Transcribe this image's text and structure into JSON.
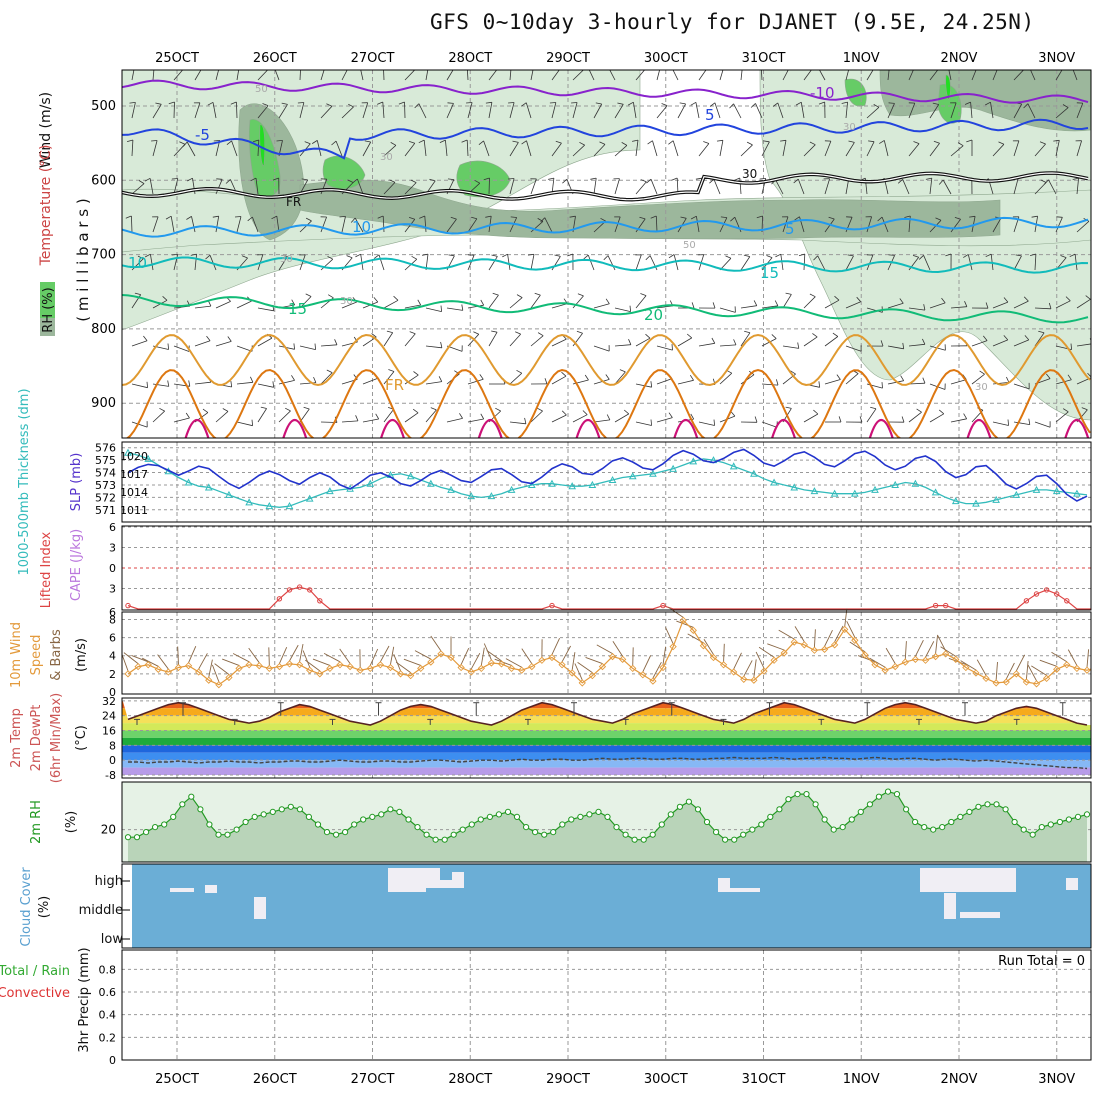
{
  "title": "GFS 0~10day 3-hourly for DJANET (9.5E, 24.25N)",
  "colors": {
    "frame": "#000000",
    "grid": "#999999",
    "rh_light": "#d8ead8",
    "rh_mid": "#9cb79c",
    "rh_green": "#66cc66",
    "rh_bright": "#22dd22",
    "temp_m10": "#8822cc",
    "temp_m5": "#2244dd",
    "temp_5": "#2299ee",
    "temp_10": "#11bbbb",
    "temp_15": "#11bb77",
    "temp_20": "#e09a30",
    "temp_25": "#dd7711",
    "temp_30": "#cc1177",
    "slp": "#2233cc",
    "thickness": "#33bbbb",
    "li": "#dd4444",
    "wind10m": "#e39a3c",
    "barb10m": "#886644",
    "rh2m": "#229922",
    "rh2m_fill": "#e6f2e6",
    "cloud_fill": "#6baed6",
    "cloud_clear": "#f0eef4",
    "precip_label_green": "#33aa33",
    "precip_label_red": "#dd3333"
  },
  "x_axis": {
    "top_labels": [
      "25OCT",
      "26OCT",
      "27OCT",
      "28OCT",
      "29OCT",
      "30OCT",
      "31OCT",
      "1NOV",
      "2NOV",
      "3NOV"
    ],
    "bottom_labels": [
      "25OCT",
      "26OCT",
      "27OCT",
      "28OCT",
      "29OCT",
      "30OCT",
      "31OCT",
      "1NOV",
      "2NOV",
      "3NOV"
    ]
  },
  "upper_panel": {
    "ylabel_wind": "Wind (m/s)",
    "ylabel_temp": "Temperature (°C)",
    "ylabel_rh": "RH (%)",
    "ylabel_mb": "( m i l l i b a r s )",
    "pressure_ticks": [
      "500",
      "600",
      "700",
      "800",
      "900"
    ],
    "contour_labels": [
      "-10",
      "-5",
      "5",
      "5",
      "10",
      "10",
      "15",
      "15",
      "20",
      "FR",
      "FR",
      "30",
      "50",
      "50",
      "30",
      "30",
      "30",
      "30",
      "30"
    ]
  },
  "slp_panel": {
    "ylabel_thick": "1000-500mb Thickness (dm)",
    "ylabel_slp": "SLP (mb)",
    "left_ticks": [
      "576",
      "575",
      "574",
      "573",
      "572",
      "571"
    ],
    "right_ticks": [
      "1020",
      "1017",
      "1014",
      "1011"
    ]
  },
  "li_panel": {
    "ylabel_li": "Lifted Index",
    "ylabel_cape": "CAPE (J/kg)",
    "ticks": [
      "6",
      "3",
      "0",
      "3",
      "6"
    ]
  },
  "wind_panel": {
    "ylabel_a": "10m Wind",
    "ylabel_b": "Speed",
    "ylabel_c": "& Barbs",
    "ylabel_unit": "(m/s)",
    "ticks": [
      "8",
      "6",
      "4",
      "2",
      "0"
    ]
  },
  "temp_panel": {
    "ylabel_a": "2m Temp",
    "ylabel_b": "2m DewPt",
    "ylabel_c": "(6hr Min/Max)",
    "ylabel_unit": "(°C)",
    "ticks": [
      "32",
      "24",
      "16",
      "8",
      "0",
      "-8"
    ]
  },
  "rh_panel": {
    "ylabel": "2m RH",
    "ylabel_unit": "(%)",
    "ticks": [
      "20"
    ]
  },
  "cloud_panel": {
    "ylabel": "Cloud Cover",
    "ylabel_unit": "(%)",
    "rows": [
      "high",
      "middle",
      "low"
    ]
  },
  "precip_panel": {
    "ylabel_a": "Total / Rain",
    "ylabel_b": "Convective",
    "ylabel_c": "3hr Precip (mm)",
    "ticks": [
      "0.8",
      "0.6",
      "0.4",
      "0.2",
      "0"
    ],
    "run_total": "Run Total = 0"
  },
  "chart_data": [
    {
      "type": "line",
      "name": "SLP",
      "x_start": "25OCT -15h",
      "x_step_hours": 3,
      "values": [
        1017.2,
        1018.1,
        1018.6,
        1018.4,
        1017.6,
        1016.8,
        1017.5,
        1018.3,
        1017.9,
        1016.6,
        1015.4,
        1014.6,
        1015.6,
        1016.8,
        1017.5,
        1016.9,
        1015.9,
        1015.3,
        1016.4,
        1017.2,
        1016.5,
        1015.2,
        1014.5,
        1015.6,
        1016.8,
        1017.2,
        1016.5,
        1015.4,
        1015.0,
        1015.9,
        1017.0,
        1017.6,
        1016.8,
        1015.9,
        1015.6,
        1016.6,
        1017.7,
        1017.9,
        1016.9,
        1015.7,
        1015.4,
        1016.5,
        1017.9,
        1018.7,
        1018.2,
        1017.1,
        1016.9,
        1017.9,
        1019.2,
        1019.7,
        1019.0,
        1018.0,
        1017.7,
        1018.7,
        1020.1,
        1020.9,
        1020.3,
        1019.2,
        1018.9,
        1019.6,
        1020.6,
        1021.1,
        1020.1,
        1018.8,
        1018.3,
        1019.2,
        1020.3,
        1020.7,
        1019.8,
        1018.6,
        1018.2,
        1019.2,
        1020.4,
        1020.8,
        1019.9,
        1018.5,
        1017.7,
        1018.3,
        1019.6,
        1020.0,
        1019.1,
        1017.4,
        1016.4,
        1016.9,
        1018.2,
        1018.4,
        1017.0,
        1015.3,
        1014.5,
        1015.4,
        1016.6,
        1016.8,
        1015.4,
        1013.6,
        1012.5,
        1013.3
      ]
    },
    {
      "type": "line",
      "name": "1000-500mb Thickness",
      "values": [
        575.6,
        575.4,
        575.1,
        574.6,
        574.1,
        573.6,
        573.2,
        572.9,
        572.8,
        572.5,
        572.2,
        571.9,
        571.6,
        571.4,
        571.3,
        571.2,
        571.3,
        571.6,
        571.9,
        572.2,
        572.5,
        572.6,
        572.7,
        572.8,
        573.1,
        573.5,
        573.8,
        573.9,
        573.7,
        573.4,
        573.1,
        572.8,
        572.6,
        572.3,
        572.1,
        572.0,
        572.1,
        572.3,
        572.6,
        572.8,
        573.0,
        573.1,
        573.1,
        573.0,
        572.9,
        572.9,
        573.0,
        573.2,
        573.4,
        573.6,
        573.7,
        573.8,
        573.9,
        574.1,
        574.3,
        574.6,
        574.9,
        575.1,
        575.0,
        574.8,
        574.5,
        574.2,
        573.9,
        573.5,
        573.2,
        573.0,
        572.8,
        572.6,
        572.5,
        572.4,
        572.3,
        572.3,
        572.3,
        572.4,
        572.6,
        572.8,
        573.0,
        573.2,
        573.1,
        572.8,
        572.4,
        572.0,
        571.7,
        571.5,
        571.5,
        571.6,
        571.8,
        572.0,
        572.2,
        572.4,
        572.6,
        572.6,
        572.5,
        572.4,
        572.3,
        572.2
      ]
    },
    {
      "type": "line",
      "name": "10m wind speed",
      "values": [
        2.0,
        2.8,
        3.0,
        2.5,
        2.2,
        2.7,
        2.9,
        2.2,
        1.3,
        0.8,
        1.6,
        2.6,
        3.0,
        2.9,
        2.6,
        2.8,
        3.1,
        3.0,
        2.4,
        2.0,
        2.6,
        3.0,
        2.8,
        2.4,
        2.6,
        3.0,
        2.7,
        2.0,
        1.8,
        2.6,
        3.3,
        4.2,
        3.8,
        2.7,
        2.2,
        2.6,
        3.2,
        3.1,
        2.6,
        2.4,
        2.8,
        3.5,
        3.8,
        3.0,
        2.1,
        1.0,
        1.8,
        2.8,
        3.9,
        3.6,
        2.6,
        1.9,
        1.2,
        2.7,
        5.0,
        7.9,
        6.8,
        5.1,
        3.8,
        3.0,
        2.2,
        1.4,
        1.3,
        2.3,
        3.5,
        4.3,
        5.5,
        5.2,
        4.6,
        4.7,
        5.2,
        6.9,
        5.7,
        4.1,
        3.0,
        2.4,
        2.8,
        3.3,
        3.6,
        3.5,
        3.9,
        4.2,
        3.6,
        2.7,
        2.1,
        1.5,
        1.0,
        1.1,
        2.0,
        1.1,
        0.9,
        1.5,
        2.5,
        3.0,
        2.6,
        2.4,
        2.7,
        3.5
      ]
    },
    {
      "type": "area",
      "name": "2m temperature",
      "values": [
        22,
        24,
        26,
        28,
        30,
        31,
        30,
        28,
        26,
        24,
        22,
        21,
        20,
        21,
        23,
        26,
        28,
        30,
        29,
        27,
        25,
        23,
        21,
        20,
        19,
        21,
        24,
        27,
        29,
        30,
        29,
        27,
        25,
        23,
        21,
        20,
        19,
        21,
        24,
        27,
        29,
        31,
        30,
        28,
        26,
        24,
        22,
        21,
        20,
        22,
        25,
        27,
        29,
        31,
        30,
        28,
        26,
        24,
        22,
        21,
        20,
        22,
        25,
        27,
        29,
        31,
        30,
        28,
        26,
        24,
        22,
        21,
        20,
        22,
        25,
        28,
        30,
        31,
        30,
        28,
        26,
        24,
        22,
        21,
        20,
        21,
        24,
        26,
        28,
        29,
        28,
        26,
        24,
        22,
        20,
        19
      ]
    },
    {
      "type": "line",
      "name": "2m dewpoint",
      "values": [
        -1,
        -1,
        -1.5,
        -1,
        -1,
        -0.5,
        -1,
        -1.5,
        -1,
        -1,
        -0.5,
        -1,
        -1,
        -1.5,
        -1,
        -1,
        -0.5,
        -0.5,
        -1,
        -1,
        -0.5,
        0,
        -0.5,
        -1,
        -1,
        -0.5,
        -0.5,
        -1,
        -1,
        -0.5,
        0,
        0,
        -0.5,
        -1,
        -0.5,
        0,
        0,
        -0.5,
        0,
        0.5,
        0,
        0,
        0.5,
        0.5,
        0,
        0,
        0.5,
        1,
        0.5,
        0.5,
        1,
        1,
        0.5,
        0.5,
        1,
        1,
        0.5,
        0.5,
        1,
        1,
        1.5,
        1,
        1,
        1,
        1.5,
        1,
        0.5,
        1,
        1,
        1.5,
        1,
        1,
        0.5,
        1,
        1.5,
        1,
        0.5,
        1,
        1,
        0.5,
        0,
        0.5,
        0.5,
        0,
        -0.5,
        0,
        -0.5,
        -1,
        -1.5,
        -2,
        -2.5,
        -3,
        -3.5,
        -4,
        -4,
        -4.5
      ]
    },
    {
      "type": "area",
      "name": "2m RH",
      "values": [
        17,
        17,
        19,
        21,
        22,
        25,
        30,
        33,
        28,
        22,
        18,
        18,
        20,
        23,
        25,
        26,
        27,
        28,
        29,
        28,
        25,
        22,
        19,
        18,
        19,
        22,
        24,
        25,
        26,
        28,
        27,
        24,
        21,
        18,
        16,
        16,
        18,
        20,
        22,
        24,
        25,
        26,
        27,
        25,
        21,
        19,
        18,
        19,
        22,
        24,
        25,
        26,
        27,
        25,
        21,
        18,
        16,
        16,
        18,
        22,
        26,
        29,
        31,
        28,
        23,
        19,
        16,
        16,
        18,
        20,
        22,
        25,
        28,
        32,
        34,
        34,
        30,
        24,
        20,
        21,
        24,
        27,
        30,
        33,
        35,
        34,
        28,
        23,
        21,
        20,
        21,
        23,
        25,
        27,
        29,
        30,
        30,
        28,
        23,
        20,
        18,
        21,
        22,
        23,
        24,
        25,
        26
      ]
    },
    {
      "type": "line",
      "name": "Lifted Index",
      "values": [
        5.5,
        6,
        6,
        6,
        6,
        6,
        6,
        6,
        6,
        6,
        6,
        6,
        6,
        6,
        6,
        4.5,
        3.2,
        2.8,
        3.2,
        4.8,
        6,
        6,
        6,
        6,
        6,
        6,
        6,
        6,
        6,
        6,
        6,
        6,
        6,
        6,
        6,
        6,
        6,
        6,
        6,
        6,
        6,
        6,
        5.5,
        6,
        6,
        6,
        6,
        6,
        6,
        6,
        6,
        6,
        6,
        5.5,
        6,
        6,
        6,
        6,
        6,
        6,
        6,
        6,
        6,
        6,
        6,
        6,
        6,
        6,
        6,
        6,
        6,
        6,
        6,
        6,
        6,
        6,
        6,
        6,
        6,
        6,
        5.5,
        5.5,
        6,
        6,
        6,
        6,
        6,
        6,
        6,
        4.8,
        3.8,
        3.2,
        3.8,
        4.8,
        6,
        6,
        6,
        4.5,
        4.3,
        4.8,
        6,
        6,
        6
      ]
    },
    {
      "type": "bar",
      "name": "3hr precipitation",
      "values": [
        0
      ],
      "ylim": [
        0,
        0.9
      ]
    }
  ]
}
